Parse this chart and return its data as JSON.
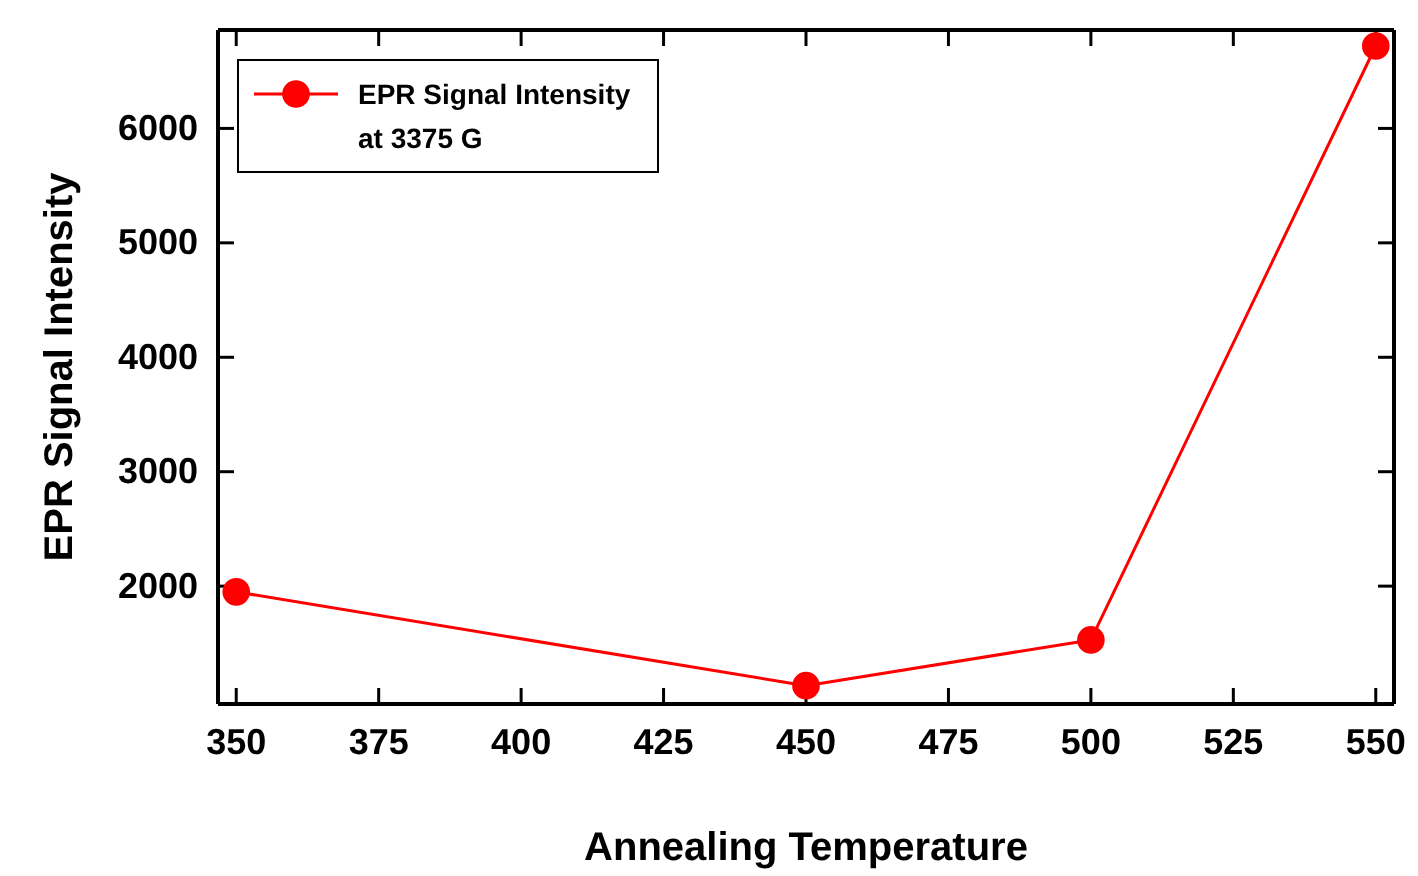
{
  "chart_data": {
    "type": "line",
    "xlabel": "Annealing Temperature",
    "ylabel": "EPR Signal Intensity",
    "x": [
      350,
      450,
      500,
      550
    ],
    "series": [
      {
        "name": "EPR Signal Intensity at 3375 G",
        "color": "#ff0000",
        "values": [
          1950,
          1130,
          1530,
          6720
        ]
      }
    ],
    "xlim": [
      346.8,
      553.2
    ],
    "xticks": [
      350,
      375,
      400,
      425,
      450,
      475,
      500,
      525,
      550
    ],
    "ylim": [
      970,
      6860
    ],
    "yticks": [
      2000,
      3000,
      4000,
      5000,
      6000
    ],
    "marker": "circle",
    "line_style": "solid",
    "legend": "top left",
    "grid": false
  }
}
